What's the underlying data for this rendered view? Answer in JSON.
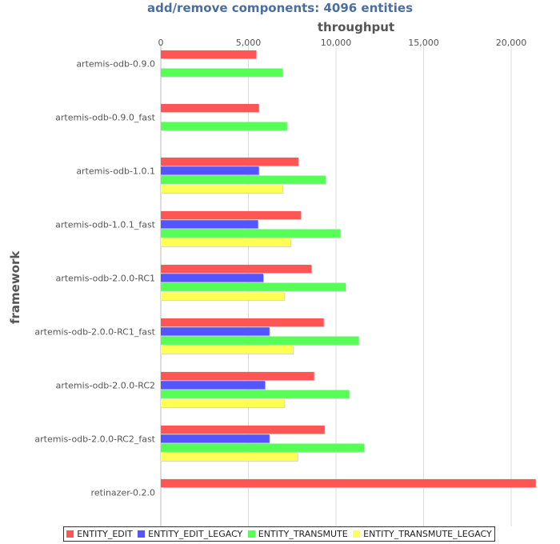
{
  "chart_data": {
    "type": "bar",
    "orientation": "horizontal",
    "title": "add/remove components: 4096 entities",
    "xlabel": "throughput",
    "ylabel": "framework",
    "xlim": [
      0,
      21500
    ],
    "xticks": [
      0,
      5000,
      10000,
      15000,
      20000
    ],
    "xtick_labels": [
      "0",
      "5,000",
      "10,000",
      "15,000",
      "20,000"
    ],
    "grid": "vertical",
    "legend_position": "bottom",
    "categories": [
      "artemis-odb-0.9.0",
      "artemis-odb-0.9.0_fast",
      "artemis-odb-1.0.1",
      "artemis-odb-1.0.1_fast",
      "artemis-odb-2.0.0-RC1",
      "artemis-odb-2.0.0-RC1_fast",
      "artemis-odb-2.0.0-RC2",
      "artemis-odb-2.0.0-RC2_fast",
      "retinazer-0.2.0"
    ],
    "series": [
      {
        "name": "ENTITY_EDIT",
        "color": "#ff5555",
        "values": [
          5450,
          5600,
          7850,
          8000,
          8600,
          9300,
          8750,
          9350,
          21400
        ]
      },
      {
        "name": "ENTITY_EDIT_LEGACY",
        "color": "#5555ff",
        "values": [
          null,
          null,
          5600,
          5550,
          5850,
          6200,
          5950,
          6200,
          null
        ]
      },
      {
        "name": "ENTITY_TRANSMUTE",
        "color": "#55ff55",
        "values": [
          6950,
          7200,
          9400,
          10250,
          10550,
          11300,
          10750,
          11600,
          null
        ]
      },
      {
        "name": "ENTITY_TRANSMUTE_LEGACY",
        "color": "#ffff55",
        "values": [
          null,
          null,
          6950,
          7400,
          7050,
          7550,
          7050,
          7800,
          null
        ]
      }
    ]
  }
}
